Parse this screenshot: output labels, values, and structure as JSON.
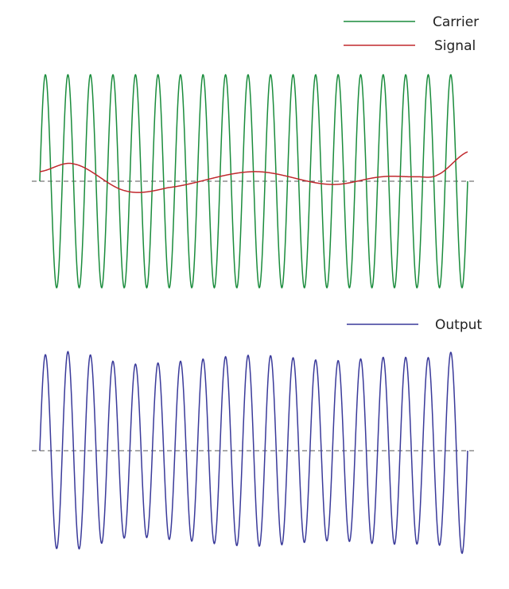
{
  "chart_data": [
    {
      "type": "line",
      "title": "",
      "xlabel": "",
      "ylabel": "",
      "x_range": [
        0,
        1
      ],
      "ylim": [
        -1.05,
        1.05
      ],
      "grid": false,
      "legend_position": "top-right",
      "baseline": {
        "y": 0,
        "style": "dashed",
        "color": "#555555"
      },
      "series": [
        {
          "name": "Carrier",
          "color": "#1a8c3c",
          "function": "sine",
          "amplitude": 1.0,
          "cycles": 19,
          "phase_start": 0
        },
        {
          "name": "Signal",
          "color": "#c0282d",
          "points_x": [
            0,
            0.08,
            0.2,
            0.3,
            0.5,
            0.68,
            0.8,
            0.88,
            0.93,
            1.0
          ],
          "points_y": [
            0.15,
            0.27,
            -0.15,
            -0.1,
            0.15,
            -0.05,
            0.07,
            0.07,
            0.1,
            0.46
          ]
        }
      ]
    },
    {
      "type": "line",
      "title": "",
      "xlabel": "",
      "ylabel": "",
      "x_range": [
        0,
        1
      ],
      "ylim": [
        -1.25,
        1.1
      ],
      "grid": false,
      "legend_position": "top-right",
      "baseline": {
        "y": 0,
        "style": "dashed",
        "color": "#555555"
      },
      "series": [
        {
          "name": "Output",
          "color": "#3a3a9a",
          "derived": "carrier * (1 + 0.3 * signal)"
        }
      ]
    }
  ]
}
